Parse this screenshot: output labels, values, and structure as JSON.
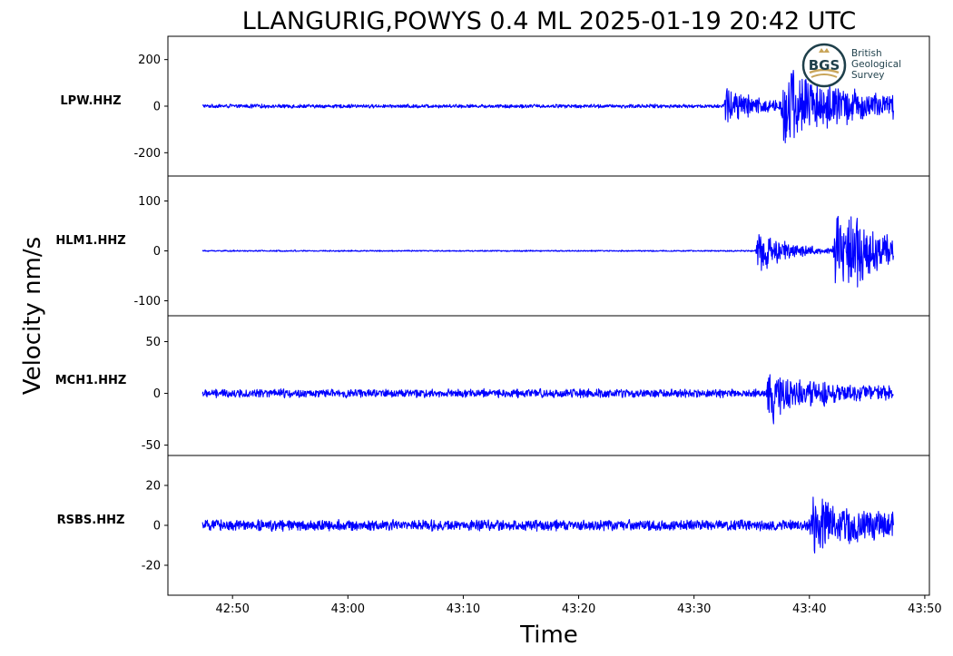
{
  "chart_data": {
    "type": "line",
    "title": "LLANGURIG,POWYS 0.4 ML   2025-01-19 20:42 UTC",
    "xlabel": "Time",
    "ylabel": "Velocity nm/s",
    "line_color": "#0000ff",
    "grid": false,
    "x_ticks": [
      "42:50",
      "43:00",
      "43:10",
      "43:20",
      "43:30",
      "43:40",
      "43:50"
    ],
    "logo": {
      "initials": "BGS",
      "lines": [
        "British",
        "Geological",
        "Survey"
      ],
      "colors": {
        "primary": "#1e3f4a",
        "accent": "#c9a55a"
      }
    },
    "panels": [
      {
        "name": "LPW.HHZ",
        "ylim": [
          -300,
          300
        ],
        "yticks": [
          {
            "v": 200,
            "label": "200"
          },
          {
            "v": 0,
            "label": "0"
          },
          {
            "v": -200,
            "label": "-200"
          }
        ],
        "noise": 12,
        "events": [
          {
            "t": 52.5,
            "amp": 150,
            "decay": 3,
            "freq": 1.8
          },
          {
            "t": 57.5,
            "amp": 240,
            "decay": 7,
            "freq": 1.6
          }
        ]
      },
      {
        "name": "HLM1.HHZ",
        "ylim": [
          -130,
          150
        ],
        "yticks": [
          {
            "v": 100,
            "label": "100"
          },
          {
            "v": 0,
            "label": "0"
          },
          {
            "v": -100,
            "label": "-100"
          }
        ],
        "noise": 2,
        "events": [
          {
            "t": 55.3,
            "amp": 80,
            "decay": 2.5,
            "freq": 1.8
          },
          {
            "t": 62.0,
            "amp": 135,
            "decay": 5,
            "freq": 1.7
          }
        ]
      },
      {
        "name": "MCH1.HHZ",
        "ylim": [
          -60,
          75
        ],
        "yticks": [
          {
            "v": 50,
            "label": "50"
          },
          {
            "v": 0,
            "label": "0"
          },
          {
            "v": -50,
            "label": "-50"
          }
        ],
        "noise": 6,
        "events": [
          {
            "t": 56.3,
            "amp": 68,
            "decay": 0.8,
            "freq": 2.2
          },
          {
            "t": 57.0,
            "amp": 12,
            "decay": 18,
            "freq": 1.4
          }
        ]
      },
      {
        "name": "RSBS.HHZ",
        "ylim": [
          -35,
          35
        ],
        "yticks": [
          {
            "v": 20,
            "label": "20"
          },
          {
            "v": 0,
            "label": "0"
          },
          {
            "v": -20,
            "label": "-20"
          }
        ],
        "noise": 4,
        "events": [
          {
            "t": 60.0,
            "amp": 22,
            "decay": 5,
            "freq": 1.3
          },
          {
            "t": 70.0,
            "amp": 30,
            "decay": 9,
            "freq": 1.2
          }
        ]
      }
    ]
  }
}
